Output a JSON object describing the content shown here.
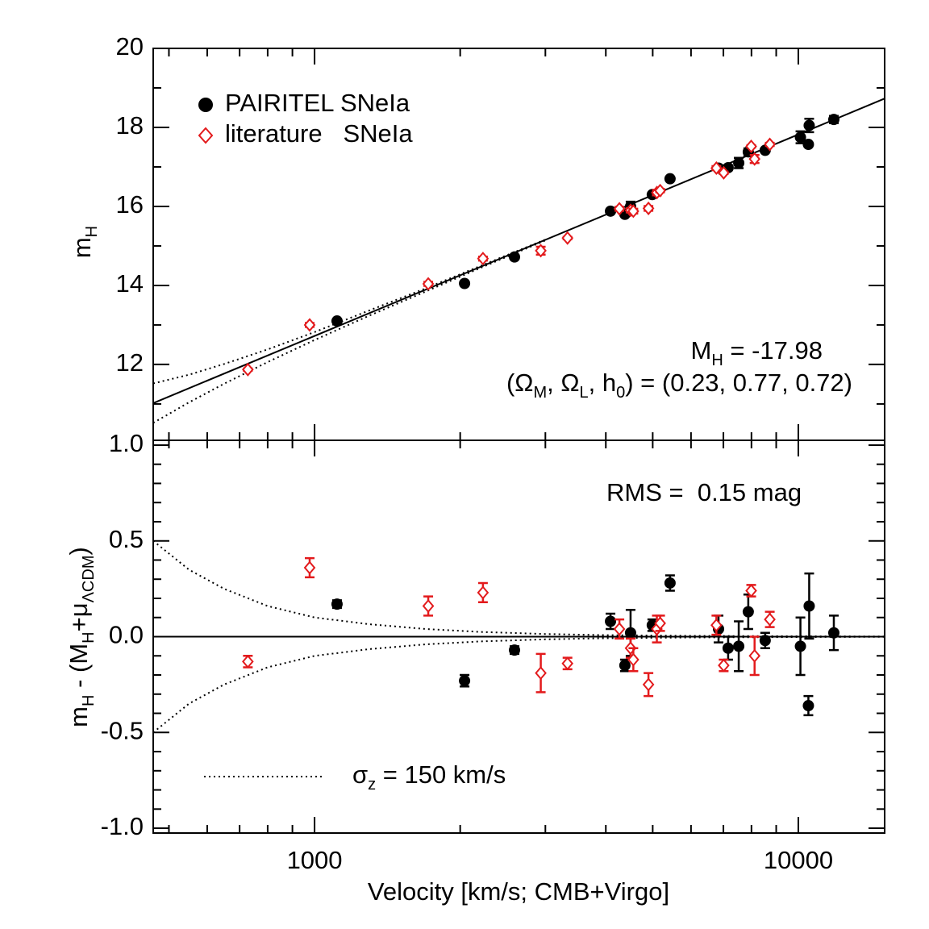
{
  "chart_data": [
    {
      "type": "scatter",
      "ylabel": [
        "m",
        "H"
      ],
      "xscale": "log",
      "xlim": [
        464,
        15080
      ],
      "ylim": [
        10.08,
        20
      ],
      "xticks": [
        1000,
        10000
      ],
      "xminorticks": [
        500,
        600,
        700,
        800,
        900,
        2000,
        3000,
        4000,
        5000,
        6000,
        7000,
        8000,
        9000
      ],
      "show_xtick_labels": false,
      "yticks": [
        12,
        14,
        16,
        18,
        20
      ],
      "yminorticks": [
        11,
        13,
        15,
        17,
        19
      ],
      "legend": "upper left",
      "annotations": {
        "absolute_magnitude": [
          "M",
          "H",
          " = -17.98"
        ],
        "cosmology": [
          "(Ω",
          "M",
          ", Ω",
          "L",
          ", h",
          "0",
          ") = (0.23, 0.77, 0.72)"
        ]
      },
      "series": [
        {
          "name": "PAIRITEL SNeIa",
          "color": "#000000",
          "marker": "circle",
          "x": [
            1113,
            2042,
            2590,
            4090,
            4380,
            4500,
            4990,
            5430,
            6840,
            7160,
            7530,
            7880,
            8540,
            10100,
            10530,
            10490,
            11840
          ],
          "values": [
            13.1,
            14.05,
            14.72,
            15.88,
            15.8,
            16.0,
            16.3,
            16.7,
            16.97,
            16.98,
            17.1,
            17.38,
            17.42,
            17.75,
            18.05,
            17.57,
            18.2
          ],
          "errors": [
            0.02,
            0.03,
            0.02,
            0.04,
            0.03,
            0.12,
            0.03,
            0.04,
            0.07,
            0.06,
            0.13,
            0.09,
            0.04,
            0.15,
            0.17,
            0.05,
            0.09
          ]
        },
        {
          "name": "literature   SNeIa",
          "color": "#e31a1c",
          "marker": "diamond",
          "x": [
            728,
            977,
            1718,
            2229,
            2935,
            3333,
            4267,
            4500,
            4560,
            4900,
            5100,
            5180,
            6770,
            7010,
            7990,
            8120,
            8730
          ],
          "values": [
            11.87,
            13.0,
            14.04,
            14.68,
            14.88,
            15.2,
            15.94,
            15.9,
            15.88,
            15.95,
            16.35,
            16.4,
            16.97,
            16.85,
            17.52,
            17.2,
            17.57
          ],
          "errors": [
            0.03,
            0.05,
            0.05,
            0.05,
            0.1,
            0.03,
            0.05,
            0.05,
            0.06,
            0.06,
            0.07,
            0.04,
            0.05,
            0.03,
            0.03,
            0.1,
            0.04
          ]
        }
      ],
      "lines": [
        {
          "style": "solid",
          "x": [
            464,
            15080
          ],
          "values": [
            11.02,
            18.73
          ]
        },
        {
          "style": "dotted",
          "x": [
            464,
            550,
            650,
            800,
            1000,
            1300,
            1700,
            2200,
            3000
          ],
          "values": [
            11.52,
            11.74,
            12.01,
            12.38,
            12.82,
            13.37,
            13.93,
            14.49,
            15.16
          ]
        },
        {
          "style": "dotted",
          "x": [
            464,
            550,
            650,
            800,
            1000,
            1300,
            1700,
            2200,
            3000
          ],
          "values": [
            10.52,
            11.04,
            11.51,
            12.06,
            12.62,
            13.24,
            13.85,
            14.44,
            15.14
          ]
        }
      ]
    },
    {
      "type": "scatter",
      "ylabel": [
        "m",
        "H",
        " - (M",
        "H",
        "+μ",
        "ΛCDM",
        ")"
      ],
      "xlabel": "Velocity [km/s; CMB+Virgo]",
      "xscale": "log",
      "xlim": [
        464,
        15080
      ],
      "ylim": [
        -1.025,
        1.025
      ],
      "xticks": [
        1000,
        10000
      ],
      "xminorticks": [
        500,
        600,
        700,
        800,
        900,
        2000,
        3000,
        4000,
        5000,
        6000,
        7000,
        8000,
        9000
      ],
      "show_xtick_labels": true,
      "yticks": [
        {
          "value": -1.0,
          "label": "-1.0"
        },
        {
          "value": -0.5,
          "label": "-0.5"
        },
        {
          "value": 0.0,
          "label": "0.0"
        },
        {
          "value": 0.5,
          "label": "0.5"
        },
        {
          "value": 1.0,
          "label": "1.0"
        }
      ],
      "yminorticks": [
        -0.9,
        -0.8,
        -0.7,
        -0.6,
        -0.4,
        -0.3,
        -0.2,
        -0.1,
        0.1,
        0.2,
        0.3,
        0.4,
        0.6,
        0.7,
        0.8,
        0.9
      ],
      "annotations": {
        "rms": "RMS =  0.15 mag",
        "sigma": [
          "σ",
          "z",
          " = 150 km/s"
        ]
      },
      "series": [
        {
          "name": "PAIRITEL SNeIa",
          "color": "#000000",
          "marker": "circle",
          "x": [
            1113,
            2042,
            2590,
            4090,
            4380,
            4500,
            4990,
            5430,
            6840,
            7160,
            7530,
            7880,
            8540,
            10100,
            10530,
            10490,
            11840
          ],
          "values": [
            0.17,
            -0.23,
            -0.07,
            0.08,
            -0.15,
            0.02,
            0.06,
            0.28,
            0.04,
            -0.06,
            -0.05,
            0.13,
            -0.02,
            -0.05,
            0.16,
            -0.36,
            0.02
          ],
          "errors": [
            0.02,
            0.03,
            0.02,
            0.04,
            0.03,
            0.12,
            0.03,
            0.04,
            0.07,
            0.06,
            0.13,
            0.09,
            0.04,
            0.15,
            0.17,
            0.05,
            0.09
          ]
        },
        {
          "name": "literature   SNeIa",
          "color": "#e31a1c",
          "marker": "diamond",
          "x": [
            728,
            977,
            1718,
            2229,
            2935,
            3333,
            4267,
            4500,
            4560,
            4900,
            5100,
            5180,
            6770,
            7010,
            7990,
            8120,
            8730
          ],
          "values": [
            -0.13,
            0.36,
            0.16,
            0.23,
            -0.19,
            -0.14,
            0.04,
            -0.06,
            -0.12,
            -0.25,
            0.04,
            0.07,
            0.06,
            -0.15,
            0.24,
            -0.1,
            0.09
          ],
          "errors": [
            0.03,
            0.05,
            0.05,
            0.05,
            0.1,
            0.03,
            0.05,
            0.05,
            0.06,
            0.06,
            0.07,
            0.04,
            0.05,
            0.03,
            0.03,
            0.1,
            0.04
          ]
        }
      ],
      "lines": [
        {
          "style": "solid",
          "x": [
            464,
            15080
          ],
          "values": [
            0,
            0
          ]
        },
        {
          "style": "dotted",
          "x": [
            464,
            550,
            650,
            800,
            1000,
            1300,
            1700,
            2200,
            3000,
            4000,
            6000,
            10000,
            15080
          ],
          "values": [
            0.5,
            0.35,
            0.25,
            0.16,
            0.1,
            0.065,
            0.04,
            0.025,
            0.014,
            0.008,
            0.004,
            0.002,
            0.001
          ]
        },
        {
          "style": "dotted",
          "x": [
            464,
            550,
            650,
            800,
            1000,
            1300,
            1700,
            2200,
            3000,
            4000,
            6000,
            10000,
            15080
          ],
          "values": [
            -0.5,
            -0.35,
            -0.25,
            -0.16,
            -0.1,
            -0.065,
            -0.04,
            -0.025,
            -0.014,
            -0.008,
            -0.004,
            -0.002,
            -0.001
          ]
        }
      ]
    }
  ]
}
